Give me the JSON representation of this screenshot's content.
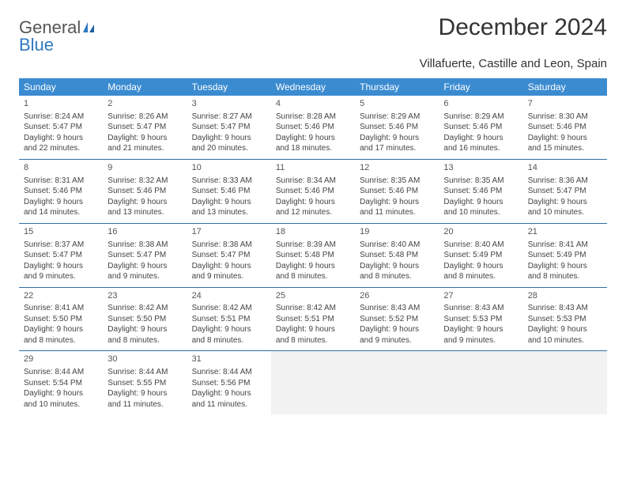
{
  "brand": {
    "name_part1": "General",
    "name_part2": "Blue"
  },
  "title": "December 2024",
  "location": "Villafuerte, Castille and Leon, Spain",
  "colors": {
    "header_bg": "#3b8bd0",
    "header_text": "#ffffff",
    "row_border": "#2f6fa8",
    "empty_bg": "#f2f2f2",
    "brand_gray": "#555555",
    "brand_blue": "#2f78c2"
  },
  "weekdays": [
    "Sunday",
    "Monday",
    "Tuesday",
    "Wednesday",
    "Thursday",
    "Friday",
    "Saturday"
  ],
  "weeks": [
    [
      {
        "day": "1",
        "sunrise": "Sunrise: 8:24 AM",
        "sunset": "Sunset: 5:47 PM",
        "daylight": "Daylight: 9 hours and 22 minutes."
      },
      {
        "day": "2",
        "sunrise": "Sunrise: 8:26 AM",
        "sunset": "Sunset: 5:47 PM",
        "daylight": "Daylight: 9 hours and 21 minutes."
      },
      {
        "day": "3",
        "sunrise": "Sunrise: 8:27 AM",
        "sunset": "Sunset: 5:47 PM",
        "daylight": "Daylight: 9 hours and 20 minutes."
      },
      {
        "day": "4",
        "sunrise": "Sunrise: 8:28 AM",
        "sunset": "Sunset: 5:46 PM",
        "daylight": "Daylight: 9 hours and 18 minutes."
      },
      {
        "day": "5",
        "sunrise": "Sunrise: 8:29 AM",
        "sunset": "Sunset: 5:46 PM",
        "daylight": "Daylight: 9 hours and 17 minutes."
      },
      {
        "day": "6",
        "sunrise": "Sunrise: 8:29 AM",
        "sunset": "Sunset: 5:46 PM",
        "daylight": "Daylight: 9 hours and 16 minutes."
      },
      {
        "day": "7",
        "sunrise": "Sunrise: 8:30 AM",
        "sunset": "Sunset: 5:46 PM",
        "daylight": "Daylight: 9 hours and 15 minutes."
      }
    ],
    [
      {
        "day": "8",
        "sunrise": "Sunrise: 8:31 AM",
        "sunset": "Sunset: 5:46 PM",
        "daylight": "Daylight: 9 hours and 14 minutes."
      },
      {
        "day": "9",
        "sunrise": "Sunrise: 8:32 AM",
        "sunset": "Sunset: 5:46 PM",
        "daylight": "Daylight: 9 hours and 13 minutes."
      },
      {
        "day": "10",
        "sunrise": "Sunrise: 8:33 AM",
        "sunset": "Sunset: 5:46 PM",
        "daylight": "Daylight: 9 hours and 13 minutes."
      },
      {
        "day": "11",
        "sunrise": "Sunrise: 8:34 AM",
        "sunset": "Sunset: 5:46 PM",
        "daylight": "Daylight: 9 hours and 12 minutes."
      },
      {
        "day": "12",
        "sunrise": "Sunrise: 8:35 AM",
        "sunset": "Sunset: 5:46 PM",
        "daylight": "Daylight: 9 hours and 11 minutes."
      },
      {
        "day": "13",
        "sunrise": "Sunrise: 8:35 AM",
        "sunset": "Sunset: 5:46 PM",
        "daylight": "Daylight: 9 hours and 10 minutes."
      },
      {
        "day": "14",
        "sunrise": "Sunrise: 8:36 AM",
        "sunset": "Sunset: 5:47 PM",
        "daylight": "Daylight: 9 hours and 10 minutes."
      }
    ],
    [
      {
        "day": "15",
        "sunrise": "Sunrise: 8:37 AM",
        "sunset": "Sunset: 5:47 PM",
        "daylight": "Daylight: 9 hours and 9 minutes."
      },
      {
        "day": "16",
        "sunrise": "Sunrise: 8:38 AM",
        "sunset": "Sunset: 5:47 PM",
        "daylight": "Daylight: 9 hours and 9 minutes."
      },
      {
        "day": "17",
        "sunrise": "Sunrise: 8:38 AM",
        "sunset": "Sunset: 5:47 PM",
        "daylight": "Daylight: 9 hours and 9 minutes."
      },
      {
        "day": "18",
        "sunrise": "Sunrise: 8:39 AM",
        "sunset": "Sunset: 5:48 PM",
        "daylight": "Daylight: 9 hours and 8 minutes."
      },
      {
        "day": "19",
        "sunrise": "Sunrise: 8:40 AM",
        "sunset": "Sunset: 5:48 PM",
        "daylight": "Daylight: 9 hours and 8 minutes."
      },
      {
        "day": "20",
        "sunrise": "Sunrise: 8:40 AM",
        "sunset": "Sunset: 5:49 PM",
        "daylight": "Daylight: 9 hours and 8 minutes."
      },
      {
        "day": "21",
        "sunrise": "Sunrise: 8:41 AM",
        "sunset": "Sunset: 5:49 PM",
        "daylight": "Daylight: 9 hours and 8 minutes."
      }
    ],
    [
      {
        "day": "22",
        "sunrise": "Sunrise: 8:41 AM",
        "sunset": "Sunset: 5:50 PM",
        "daylight": "Daylight: 9 hours and 8 minutes."
      },
      {
        "day": "23",
        "sunrise": "Sunrise: 8:42 AM",
        "sunset": "Sunset: 5:50 PM",
        "daylight": "Daylight: 9 hours and 8 minutes."
      },
      {
        "day": "24",
        "sunrise": "Sunrise: 8:42 AM",
        "sunset": "Sunset: 5:51 PM",
        "daylight": "Daylight: 9 hours and 8 minutes."
      },
      {
        "day": "25",
        "sunrise": "Sunrise: 8:42 AM",
        "sunset": "Sunset: 5:51 PM",
        "daylight": "Daylight: 9 hours and 8 minutes."
      },
      {
        "day": "26",
        "sunrise": "Sunrise: 8:43 AM",
        "sunset": "Sunset: 5:52 PM",
        "daylight": "Daylight: 9 hours and 9 minutes."
      },
      {
        "day": "27",
        "sunrise": "Sunrise: 8:43 AM",
        "sunset": "Sunset: 5:53 PM",
        "daylight": "Daylight: 9 hours and 9 minutes."
      },
      {
        "day": "28",
        "sunrise": "Sunrise: 8:43 AM",
        "sunset": "Sunset: 5:53 PM",
        "daylight": "Daylight: 9 hours and 10 minutes."
      }
    ],
    [
      {
        "day": "29",
        "sunrise": "Sunrise: 8:44 AM",
        "sunset": "Sunset: 5:54 PM",
        "daylight": "Daylight: 9 hours and 10 minutes."
      },
      {
        "day": "30",
        "sunrise": "Sunrise: 8:44 AM",
        "sunset": "Sunset: 5:55 PM",
        "daylight": "Daylight: 9 hours and 11 minutes."
      },
      {
        "day": "31",
        "sunrise": "Sunrise: 8:44 AM",
        "sunset": "Sunset: 5:56 PM",
        "daylight": "Daylight: 9 hours and 11 minutes."
      },
      null,
      null,
      null,
      null
    ]
  ]
}
